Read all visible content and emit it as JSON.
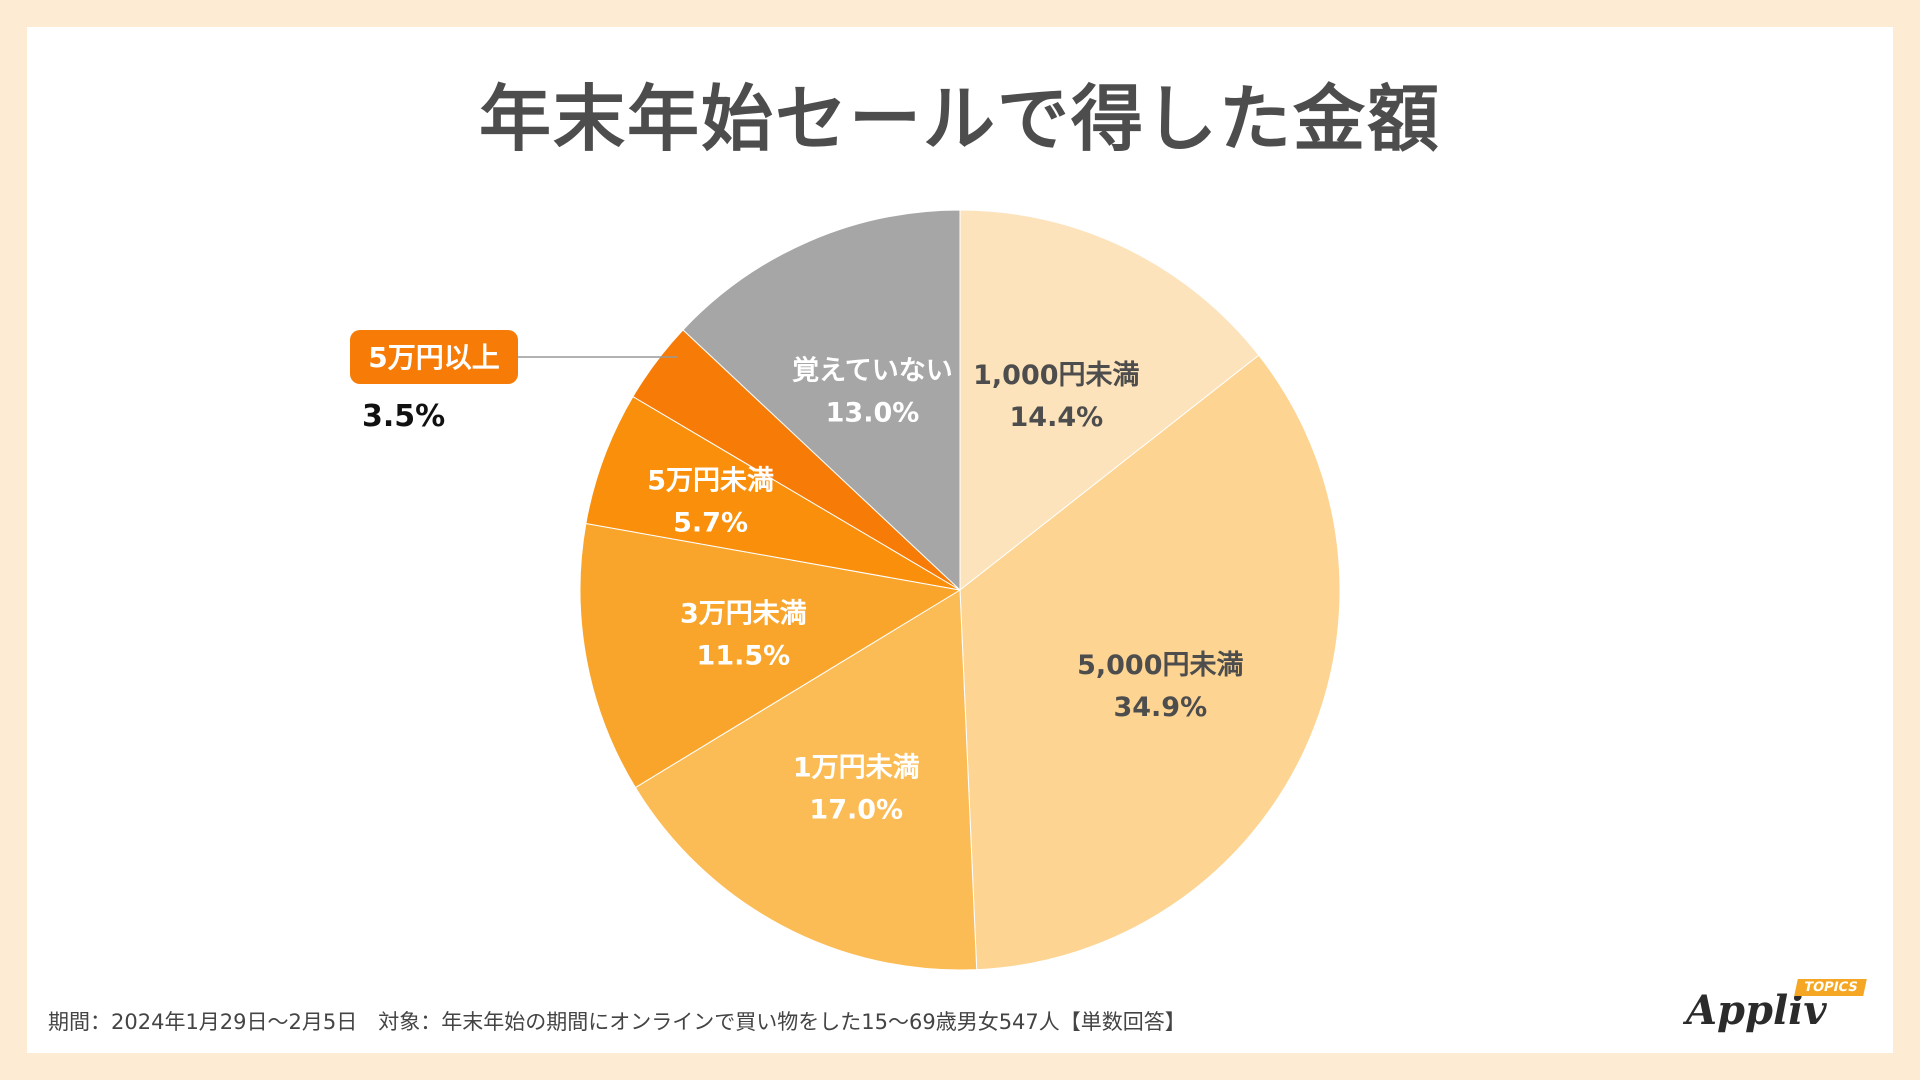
{
  "title": "年末年始セールで得した金額",
  "footer": "期間：2024年1月29日〜2月5日　対象：年末年始の期間にオンラインで買い物をした15〜69歳男女547人【単数回答】",
  "logo": {
    "text": "Appliv",
    "badge": "TOPICS"
  },
  "chart_data": {
    "type": "pie",
    "title": "年末年始セールで得した金額",
    "start": "12 o'clock",
    "direction": "clockwise",
    "slices": [
      {
        "label": "1,000円未満",
        "value": 14.4,
        "display": "14.4%",
        "color": "#fde3bb",
        "text_color": "#4d4d4d"
      },
      {
        "label": "5,000円未満",
        "value": 34.9,
        "display": "34.9%",
        "color": "#fdd492",
        "text_color": "#4d4d4d"
      },
      {
        "label": "1万円未満",
        "value": 17.0,
        "display": "17.0%",
        "color": "#fbbc55",
        "text_color": "#ffffff"
      },
      {
        "label": "3万円未満",
        "value": 11.5,
        "display": "11.5%",
        "color": "#f9a52c",
        "text_color": "#ffffff"
      },
      {
        "label": "5万円未満",
        "value": 5.7,
        "display": "5.7%",
        "color": "#f98f0a",
        "text_color": "#ffffff"
      },
      {
        "label": "5万円以上",
        "value": 3.5,
        "display": "3.5%",
        "color": "#f77b07",
        "text_color": "#ffffff",
        "callout": true
      },
      {
        "label": "覚えていない",
        "value": 13.0,
        "display": "13.0%",
        "color": "#a6a6a6",
        "text_color": "#ffffff"
      }
    ]
  }
}
